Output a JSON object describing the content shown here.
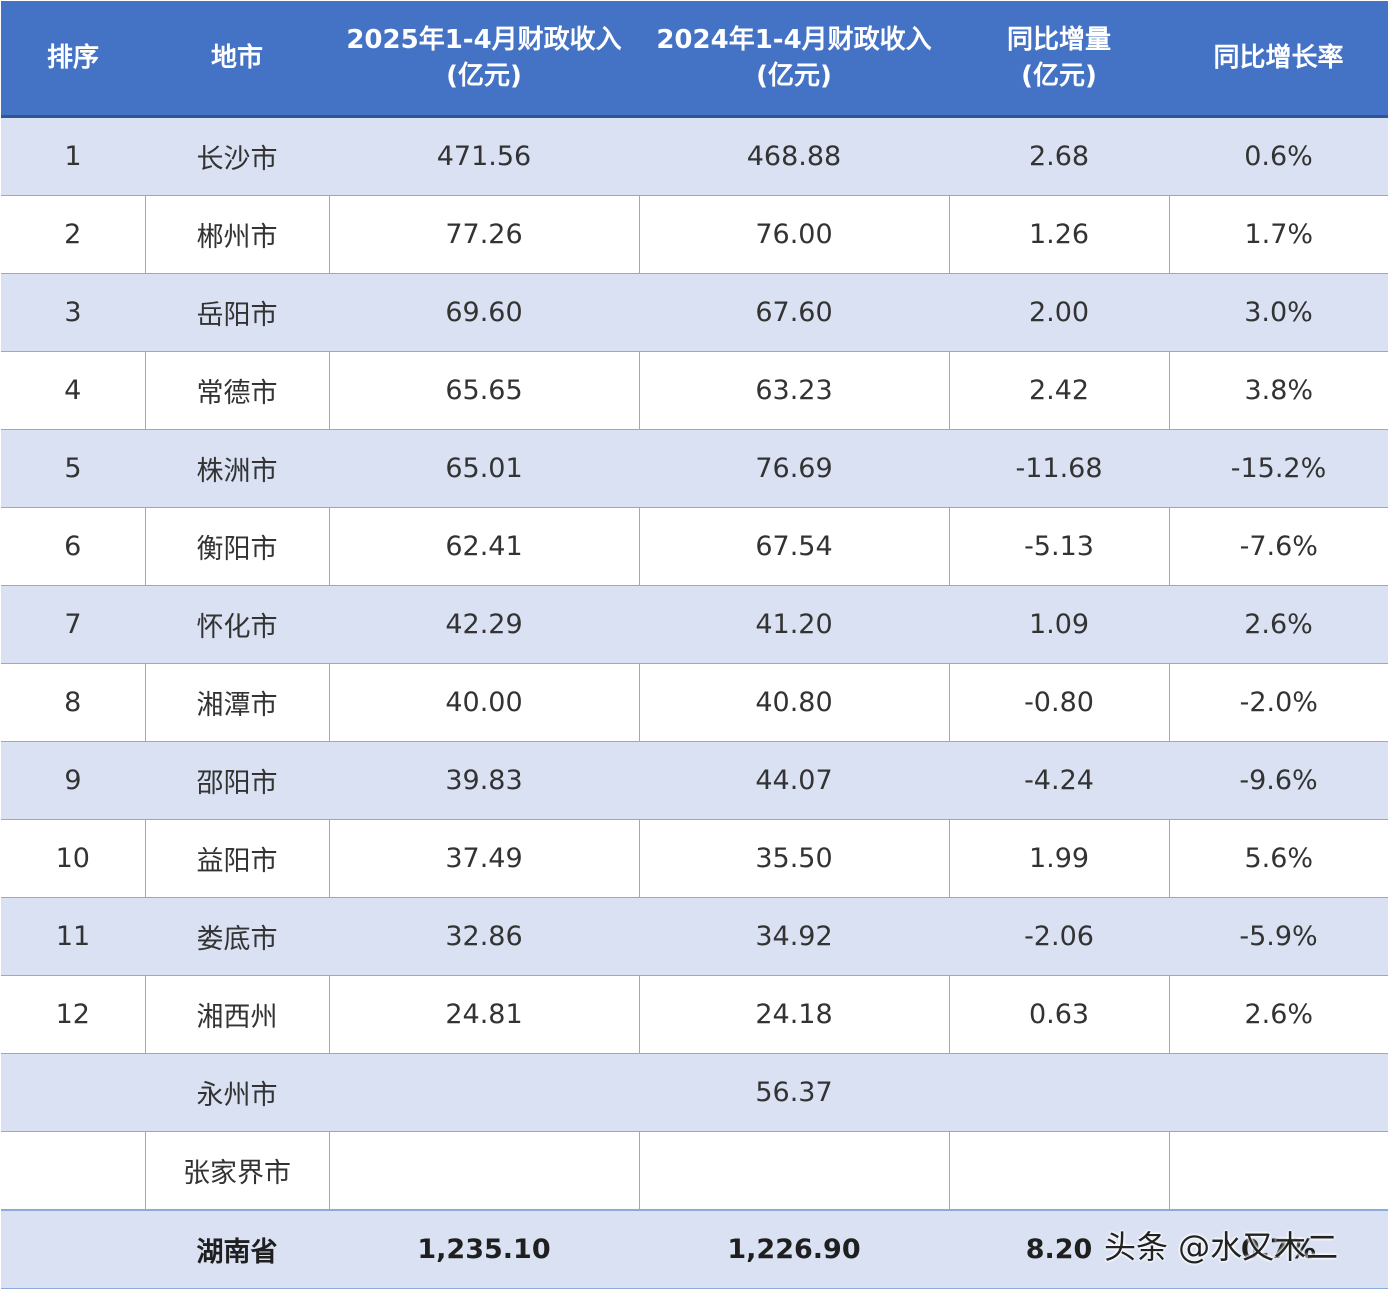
{
  "table": {
    "headers": [
      {
        "line1": "排序",
        "line2": ""
      },
      {
        "line1": "地市",
        "line2": ""
      },
      {
        "line1": "2025年1-4月财政收入",
        "line2": "(亿元)"
      },
      {
        "line1": "2024年1-4月财政收入",
        "line2": "(亿元)"
      },
      {
        "line1": "同比增量",
        "line2": "(亿元)"
      },
      {
        "line1": "同比增长率",
        "line2": ""
      }
    ],
    "rows": [
      {
        "rank": "1",
        "city": "长沙市",
        "rev2025": "471.56",
        "rev2024": "468.88",
        "change": "2.68",
        "rate": "0.6%"
      },
      {
        "rank": "2",
        "city": "郴州市",
        "rev2025": "77.26",
        "rev2024": "76.00",
        "change": "1.26",
        "rate": "1.7%"
      },
      {
        "rank": "3",
        "city": "岳阳市",
        "rev2025": "69.60",
        "rev2024": "67.60",
        "change": "2.00",
        "rate": "3.0%"
      },
      {
        "rank": "4",
        "city": "常德市",
        "rev2025": "65.65",
        "rev2024": "63.23",
        "change": "2.42",
        "rate": "3.8%"
      },
      {
        "rank": "5",
        "city": "株洲市",
        "rev2025": "65.01",
        "rev2024": "76.69",
        "change": "-11.68",
        "rate": "-15.2%"
      },
      {
        "rank": "6",
        "city": "衡阳市",
        "rev2025": "62.41",
        "rev2024": "67.54",
        "change": "-5.13",
        "rate": "-7.6%"
      },
      {
        "rank": "7",
        "city": "怀化市",
        "rev2025": "42.29",
        "rev2024": "41.20",
        "change": "1.09",
        "rate": "2.6%"
      },
      {
        "rank": "8",
        "city": "湘潭市",
        "rev2025": "40.00",
        "rev2024": "40.80",
        "change": "-0.80",
        "rate": "-2.0%"
      },
      {
        "rank": "9",
        "city": "邵阳市",
        "rev2025": "39.83",
        "rev2024": "44.07",
        "change": "-4.24",
        "rate": "-9.6%"
      },
      {
        "rank": "10",
        "city": "益阳市",
        "rev2025": "37.49",
        "rev2024": "35.50",
        "change": "1.99",
        "rate": "5.6%"
      },
      {
        "rank": "11",
        "city": "娄底市",
        "rev2025": "32.86",
        "rev2024": "34.92",
        "change": "-2.06",
        "rate": "-5.9%"
      },
      {
        "rank": "12",
        "city": "湘西州",
        "rev2025": "24.81",
        "rev2024": "24.18",
        "change": "0.63",
        "rate": "2.6%"
      },
      {
        "rank": "",
        "city": "永州市",
        "rev2025": "",
        "rev2024": "56.37",
        "change": "",
        "rate": ""
      },
      {
        "rank": "",
        "city": "张家界市",
        "rev2025": "",
        "rev2024": "",
        "change": "",
        "rate": ""
      }
    ],
    "total": {
      "rank": "",
      "city": "湖南省",
      "rev2025": "1,235.10",
      "rev2024": "1,226.90",
      "change": "8.20",
      "rate": "0.7%"
    }
  },
  "watermark": "头条 @水又木二",
  "colors": {
    "header_bg": "#4472c4",
    "band_bg": "#d9e1f2",
    "grid": "#8eaadb"
  }
}
